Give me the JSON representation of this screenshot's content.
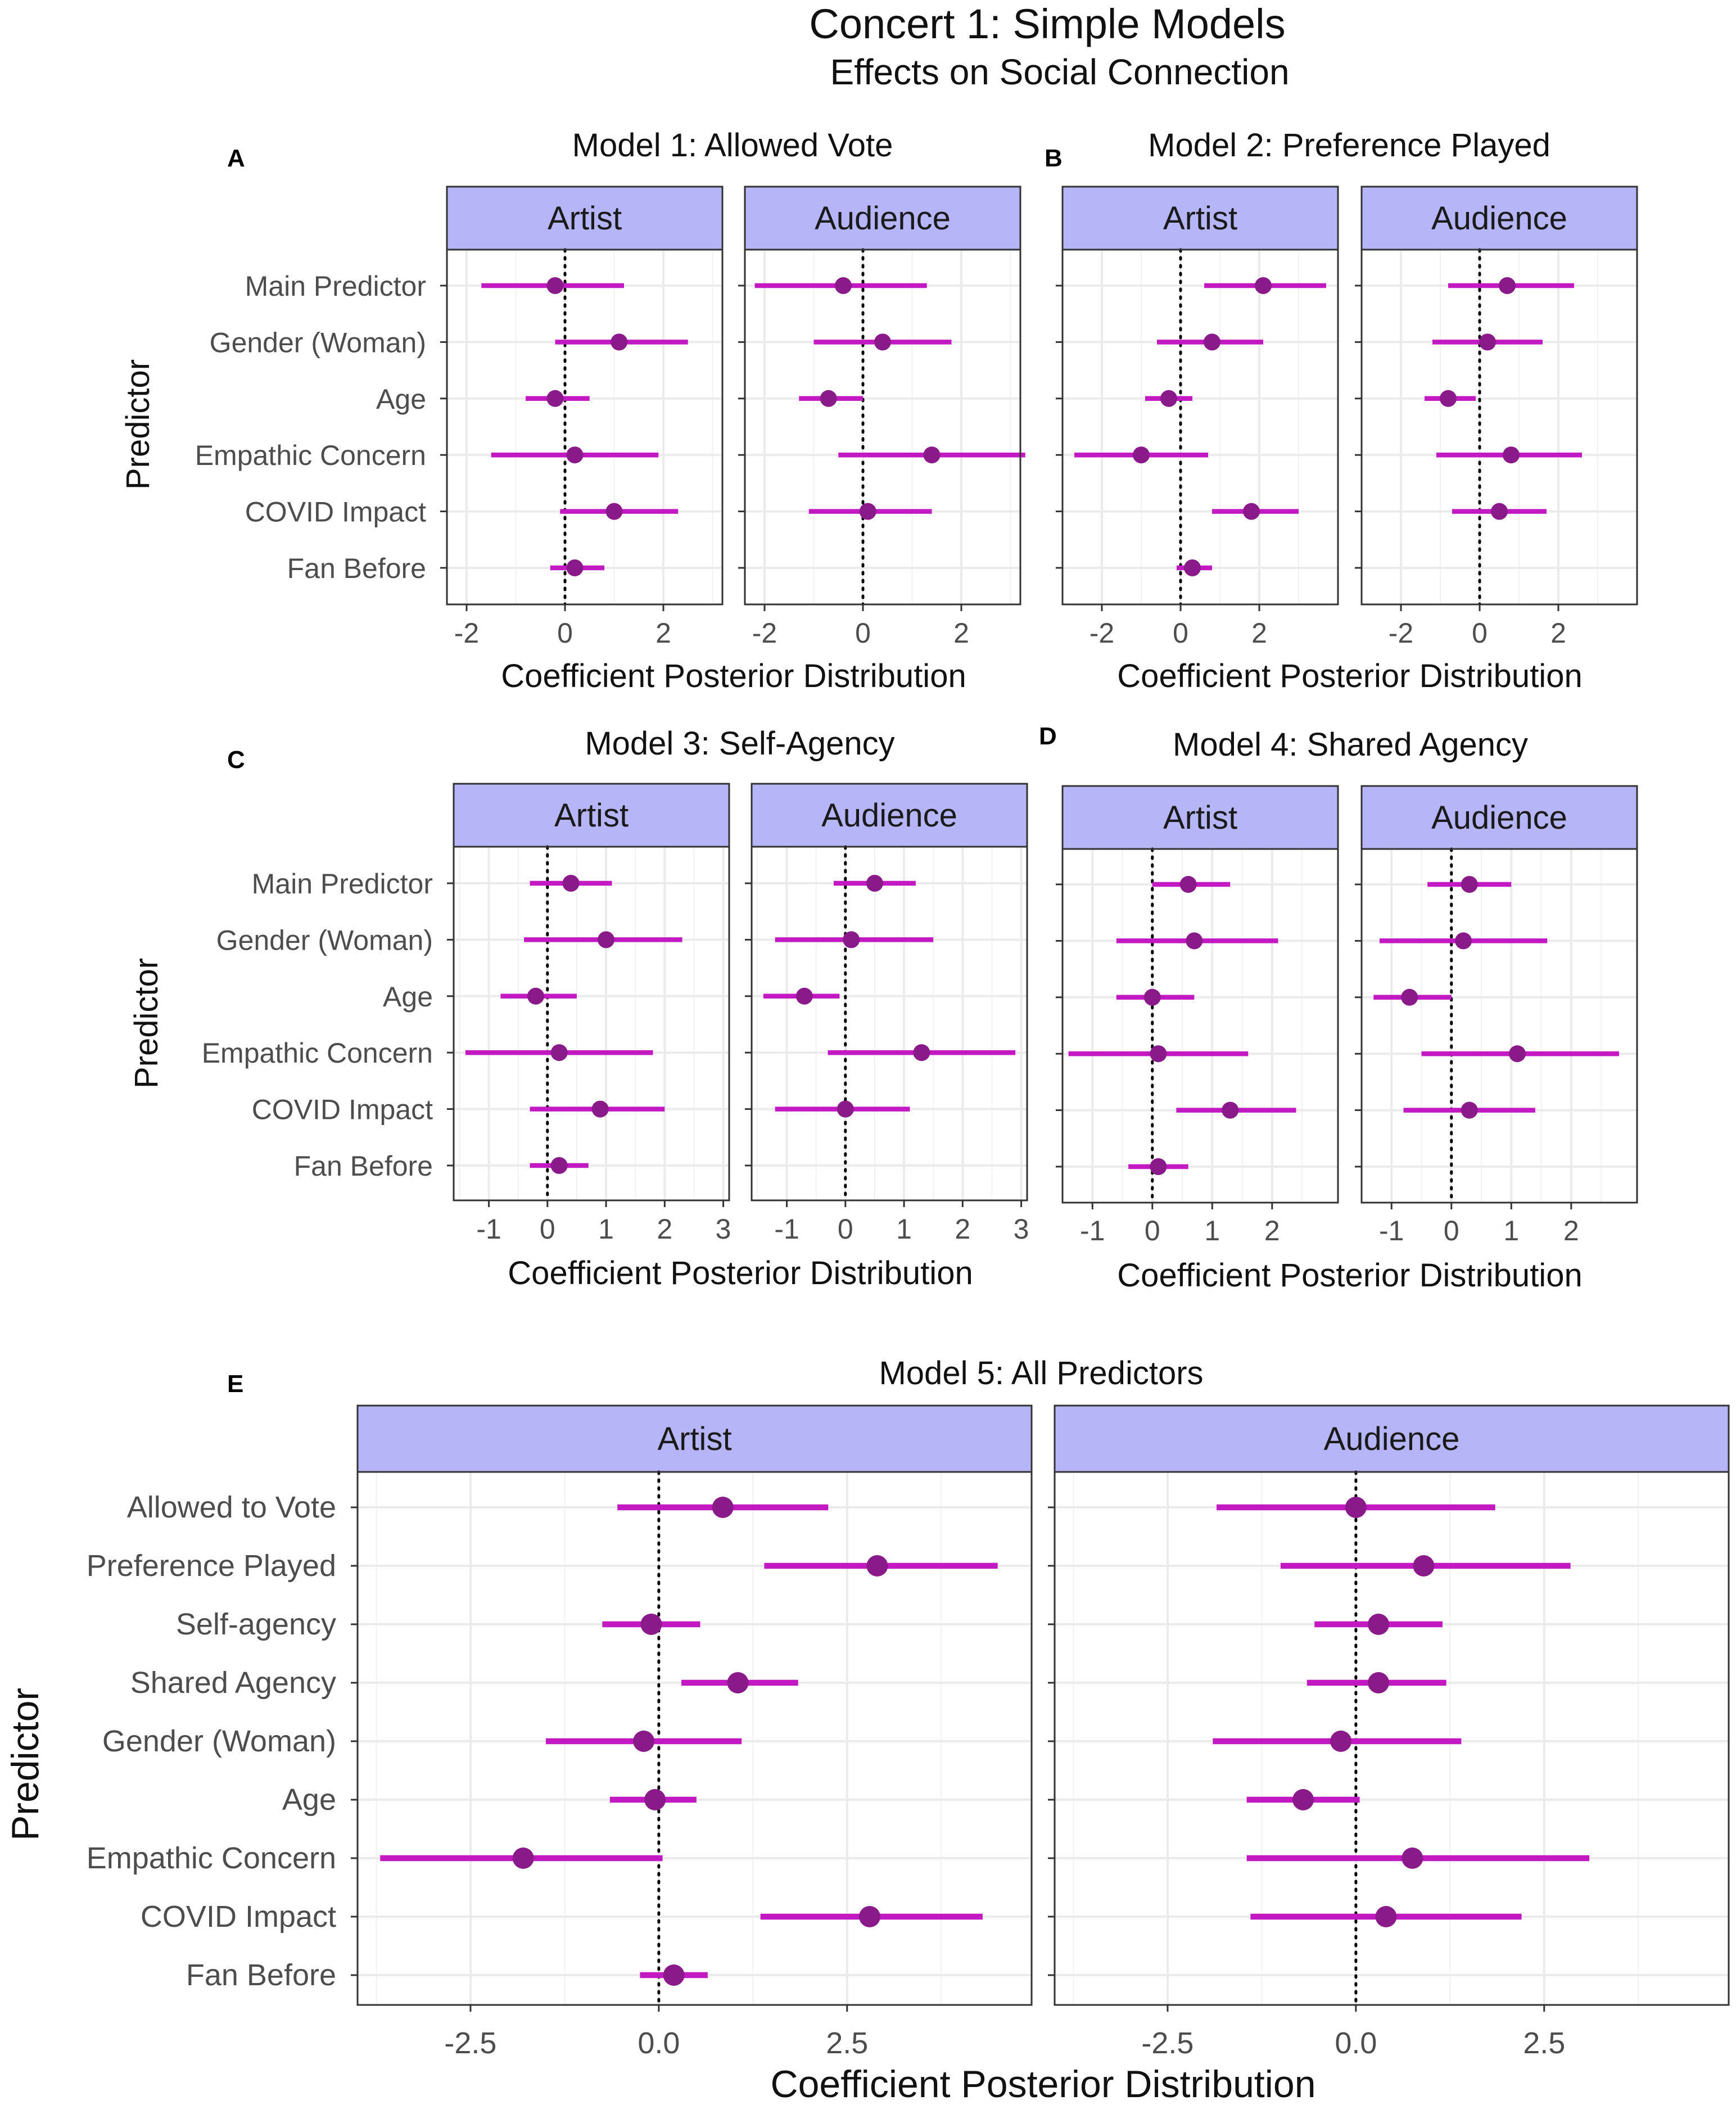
{
  "figure": {
    "title": "Concert 1: Simple Models",
    "subtitle": "Effects on Social Connection"
  },
  "colors": {
    "strip_fill": "#b5b5f7",
    "interval": "#c219c2",
    "point": "#8a1a8a",
    "grid": "#ebebeb",
    "border": "#333333"
  },
  "chart_data": [
    {
      "type": "forest",
      "panel_label": "A",
      "title": "Model 1: Allowed Vote",
      "xlabel": "Coefficient Posterior Distribution",
      "ylabel": "Predictor",
      "xlim": [
        -2.4,
        3.2
      ],
      "xticks": [
        -2,
        0,
        2
      ],
      "xtick_labels": [
        "-2",
        "0",
        "2"
      ],
      "categories": [
        "Main Predictor",
        "Gender (Woman)",
        "Age",
        "Empathic Concern",
        "COVID Impact",
        "Fan Before"
      ],
      "facets": [
        {
          "name": "Artist",
          "estimates": [
            -0.2,
            1.1,
            -0.2,
            0.2,
            1.0,
            0.2
          ],
          "lower": [
            -1.7,
            -0.2,
            -0.8,
            -1.5,
            -0.1,
            -0.3
          ],
          "upper": [
            1.2,
            2.5,
            0.5,
            1.9,
            2.3,
            0.8
          ]
        },
        {
          "name": "Audience",
          "estimates": [
            -0.4,
            0.4,
            -0.7,
            1.4,
            0.1,
            null
          ],
          "lower": [
            -2.2,
            -1.0,
            -1.3,
            -0.5,
            -1.1,
            null
          ],
          "upper": [
            1.3,
            1.8,
            0.0,
            3.3,
            1.4,
            null
          ]
        }
      ]
    },
    {
      "type": "forest",
      "panel_label": "B",
      "title": "Model 2: Preference Played",
      "xlabel": "Coefficient Posterior Distribution",
      "ylabel": "",
      "xlim": [
        -3.0,
        4.0
      ],
      "xticks": [
        -2,
        0,
        2
      ],
      "xtick_labels": [
        "-2",
        "0",
        "2"
      ],
      "categories": [
        "Main Predictor",
        "Gender (Woman)",
        "Age",
        "Empathic Concern",
        "COVID Impact",
        "Fan Before"
      ],
      "facets": [
        {
          "name": "Artist",
          "estimates": [
            2.1,
            0.8,
            -0.3,
            -1.0,
            1.8,
            0.3
          ],
          "lower": [
            0.6,
            -0.6,
            -0.9,
            -2.7,
            0.8,
            -0.1
          ],
          "upper": [
            3.7,
            2.1,
            0.3,
            0.7,
            3.0,
            0.8
          ]
        },
        {
          "name": "Audience",
          "estimates": [
            0.7,
            0.2,
            -0.8,
            0.8,
            0.5,
            null
          ],
          "lower": [
            -0.8,
            -1.2,
            -1.4,
            -1.1,
            -0.7,
            null
          ],
          "upper": [
            2.4,
            1.6,
            -0.1,
            2.6,
            1.7,
            null
          ]
        }
      ]
    },
    {
      "type": "forest",
      "panel_label": "C",
      "title": "Model 3: Self-Agency",
      "xlabel": "Coefficient Posterior Distribution",
      "ylabel": "Predictor",
      "xlim": [
        -1.6,
        3.1
      ],
      "xticks": [
        -1,
        0,
        1,
        2,
        3
      ],
      "xtick_labels": [
        "-1",
        "0",
        "1",
        "2",
        "3"
      ],
      "categories": [
        "Main Predictor",
        "Gender (Woman)",
        "Age",
        "Empathic Concern",
        "COVID Impact",
        "Fan Before"
      ],
      "facets": [
        {
          "name": "Artist",
          "estimates": [
            0.4,
            1.0,
            -0.2,
            0.2,
            0.9,
            0.2
          ],
          "lower": [
            -0.3,
            -0.4,
            -0.8,
            -1.4,
            -0.3,
            -0.3
          ],
          "upper": [
            1.1,
            2.3,
            0.5,
            1.8,
            2.0,
            0.7
          ]
        },
        {
          "name": "Audience",
          "estimates": [
            0.5,
            0.1,
            -0.7,
            1.3,
            0.0,
            null
          ],
          "lower": [
            -0.2,
            -1.2,
            -1.4,
            -0.3,
            -1.2,
            null
          ],
          "upper": [
            1.2,
            1.5,
            -0.1,
            2.9,
            1.1,
            null
          ]
        }
      ]
    },
    {
      "type": "forest",
      "panel_label": "D",
      "title": "Model 4: Shared Agency",
      "xlabel": "Coefficient Posterior Distribution",
      "ylabel": "",
      "xlim": [
        -1.5,
        3.1
      ],
      "xticks": [
        -1,
        0,
        1,
        2
      ],
      "xtick_labels": [
        "-1",
        "0",
        "1",
        "2"
      ],
      "categories": [
        "Main Predictor",
        "Gender (Woman)",
        "Age",
        "Empathic Concern",
        "COVID Impact",
        "Fan Before"
      ],
      "facets": [
        {
          "name": "Artist",
          "estimates": [
            0.6,
            0.7,
            0.0,
            0.1,
            1.3,
            0.1
          ],
          "lower": [
            0.0,
            -0.6,
            -0.6,
            -1.4,
            0.4,
            -0.4
          ],
          "upper": [
            1.3,
            2.1,
            0.7,
            1.6,
            2.4,
            0.6
          ]
        },
        {
          "name": "Audience",
          "estimates": [
            0.3,
            0.2,
            -0.7,
            1.1,
            0.3,
            null
          ],
          "lower": [
            -0.4,
            -1.2,
            -1.3,
            -0.5,
            -0.8,
            null
          ],
          "upper": [
            1.0,
            1.6,
            0.0,
            2.8,
            1.4,
            null
          ]
        }
      ]
    },
    {
      "type": "forest",
      "panel_label": "E",
      "title": "Model 5: All Predictors",
      "xlabel": "Coefficient Posterior Distribution",
      "ylabel": "Predictor",
      "xlim": [
        -4.0,
        4.95
      ],
      "xticks": [
        -2.5,
        0.0,
        2.5
      ],
      "xtick_labels": [
        "-2.5",
        "0.0",
        "2.5"
      ],
      "categories": [
        "Allowed to Vote",
        "Preference Played",
        "Self-agency",
        "Shared Agency",
        "Gender (Woman)",
        "Age",
        "Empathic Concern",
        "COVID Impact",
        "Fan Before"
      ],
      "facets": [
        {
          "name": "Artist",
          "estimates": [
            0.85,
            2.9,
            -0.1,
            1.05,
            -0.2,
            -0.05,
            -1.8,
            2.8,
            0.2
          ],
          "lower": [
            -0.55,
            1.4,
            -0.75,
            0.3,
            -1.5,
            -0.65,
            -3.7,
            1.35,
            -0.25
          ],
          "upper": [
            2.25,
            4.5,
            0.55,
            1.85,
            1.1,
            0.5,
            0.05,
            4.3,
            0.65
          ]
        },
        {
          "name": "Audience",
          "estimates": [
            0.0,
            0.9,
            0.3,
            0.3,
            -0.2,
            -0.7,
            0.75,
            0.4,
            null
          ],
          "lower": [
            -1.85,
            -1.0,
            -0.55,
            -0.65,
            -1.9,
            -1.45,
            -1.45,
            -1.4,
            null
          ],
          "upper": [
            1.85,
            2.85,
            1.15,
            1.2,
            1.4,
            0.05,
            3.1,
            2.2,
            null
          ]
        }
      ]
    }
  ]
}
